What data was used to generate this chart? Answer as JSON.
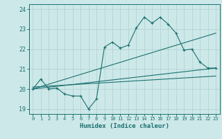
{
  "title": "",
  "xlabel": "Humidex (Indice chaleur)",
  "ylabel": "",
  "bg_color": "#cde8e8",
  "grid_color": "#b0cfcf",
  "line_color": "#1a7070",
  "xlim": [
    -0.5,
    23.5
  ],
  "ylim": [
    18.75,
    24.25
  ],
  "xticks": [
    0,
    1,
    2,
    3,
    4,
    5,
    6,
    7,
    8,
    9,
    10,
    11,
    12,
    13,
    14,
    15,
    16,
    17,
    18,
    19,
    20,
    21,
    22,
    23
  ],
  "yticks": [
    19,
    20,
    21,
    22,
    23,
    24
  ],
  "line1_x": [
    0,
    1,
    2,
    3,
    4,
    5,
    6,
    7,
    8,
    9,
    10,
    11,
    12,
    13,
    14,
    15,
    16,
    17,
    18,
    19,
    20,
    21,
    22,
    23
  ],
  "line1_y": [
    20.0,
    20.5,
    20.0,
    20.05,
    19.75,
    19.65,
    19.65,
    19.0,
    19.5,
    22.1,
    22.35,
    22.05,
    22.2,
    23.05,
    23.6,
    23.3,
    23.6,
    23.25,
    22.8,
    21.95,
    22.0,
    21.35,
    21.05,
    21.05
  ],
  "line2_x": [
    0,
    23
  ],
  "line2_y": [
    20.0,
    22.8
  ],
  "line3_x": [
    0,
    23
  ],
  "line3_y": [
    20.0,
    21.05
  ],
  "line4_x": [
    0,
    23
  ],
  "line4_y": [
    20.1,
    20.65
  ]
}
